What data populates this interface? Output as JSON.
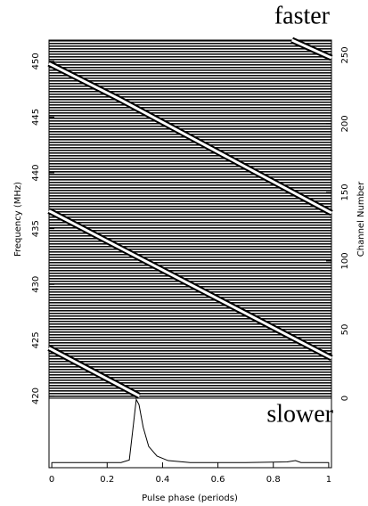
{
  "chart_data": [
    {
      "type": "line",
      "annotation": "faster",
      "ylabel": "Frequency (MHz)",
      "y2label": "Channel Number",
      "xlim": [
        0,
        1
      ],
      "ylim": [
        419.8,
        451.9
      ],
      "yticks": [
        420,
        425,
        430,
        435,
        440,
        445,
        450
      ],
      "y2lim": [
        0,
        261
      ],
      "y2ticks": [
        0,
        50,
        100,
        150,
        200,
        250
      ],
      "series": [
        {
          "color": "#ffffff",
          "x": [
            0.86,
            1,
            null,
            0,
            0.25,
            0.5,
            0.75,
            1,
            null,
            0,
            0.25,
            0.5,
            0.75,
            1,
            null,
            0,
            0.32
          ],
          "values": [
            451.9,
            450.3,
            null,
            449.8,
            446.6,
            443.2,
            439.8,
            436.4,
            null,
            436.6,
            433.3,
            430.0,
            426.7,
            423.4,
            null,
            424.3,
            420.0
          ]
        }
      ]
    },
    {
      "type": "line",
      "annotation": "slower",
      "xlabel": "Pulse phase (periods)",
      "xlim": [
        -0.01,
        1.01
      ],
      "xticks": [
        0,
        0.2,
        0.4,
        0.6,
        0.8,
        1
      ],
      "ylim": [
        -0.08,
        1.0
      ],
      "series": [
        {
          "color": "#000000",
          "x": [
            0,
            0.25,
            0.28,
            0.295,
            0.305,
            0.315,
            0.33,
            0.35,
            0.38,
            0.42,
            0.5,
            0.7,
            0.85,
            0.88,
            0.9,
            1
          ],
          "values": [
            0,
            0,
            0.04,
            0.6,
            0.98,
            0.9,
            0.55,
            0.25,
            0.1,
            0.03,
            0,
            0,
            0.01,
            0.03,
            0,
            0
          ]
        }
      ]
    }
  ]
}
